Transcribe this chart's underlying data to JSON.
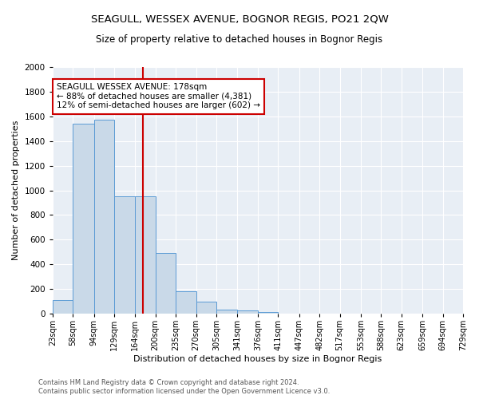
{
  "title": "SEAGULL, WESSEX AVENUE, BOGNOR REGIS, PO21 2QW",
  "subtitle": "Size of property relative to detached houses in Bognor Regis",
  "xlabel": "Distribution of detached houses by size in Bognor Regis",
  "ylabel": "Number of detached properties",
  "footnote1": "Contains HM Land Registry data © Crown copyright and database right 2024.",
  "footnote2": "Contains public sector information licensed under the Open Government Licence v3.0.",
  "annotation_line1": "SEAGULL WESSEX AVENUE: 178sqm",
  "annotation_line2": "← 88% of detached houses are smaller (4,381)",
  "annotation_line3": "12% of semi-detached houses are larger (602) →",
  "bar_color": "#c9d9e8",
  "bar_edge_color": "#5b9bd5",
  "ref_line_color": "#cc0000",
  "ref_line_x": 178,
  "categories": [
    "23sqm",
    "58sqm",
    "94sqm",
    "129sqm",
    "164sqm",
    "200sqm",
    "235sqm",
    "270sqm",
    "305sqm",
    "341sqm",
    "376sqm",
    "411sqm",
    "447sqm",
    "482sqm",
    "517sqm",
    "553sqm",
    "588sqm",
    "623sqm",
    "659sqm",
    "694sqm",
    "729sqm"
  ],
  "bin_lefts": [
    23,
    58,
    94,
    129,
    164,
    200,
    235,
    270,
    305,
    341,
    376,
    411,
    447,
    482,
    517,
    553,
    588,
    623,
    659,
    694
  ],
  "bin_rights": [
    58,
    94,
    129,
    164,
    200,
    235,
    270,
    305,
    341,
    376,
    411,
    447,
    482,
    517,
    553,
    588,
    623,
    659,
    694,
    729
  ],
  "heights": [
    110,
    1540,
    1570,
    950,
    950,
    490,
    185,
    95,
    35,
    25,
    15,
    0,
    0,
    0,
    0,
    0,
    0,
    0,
    0,
    0
  ],
  "ylim": [
    0,
    2000
  ],
  "yticks": [
    0,
    200,
    400,
    600,
    800,
    1000,
    1200,
    1400,
    1600,
    1800,
    2000
  ],
  "plot_bg_color": "#e8eef5",
  "title_fontsize": 9.5,
  "subtitle_fontsize": 8.5
}
